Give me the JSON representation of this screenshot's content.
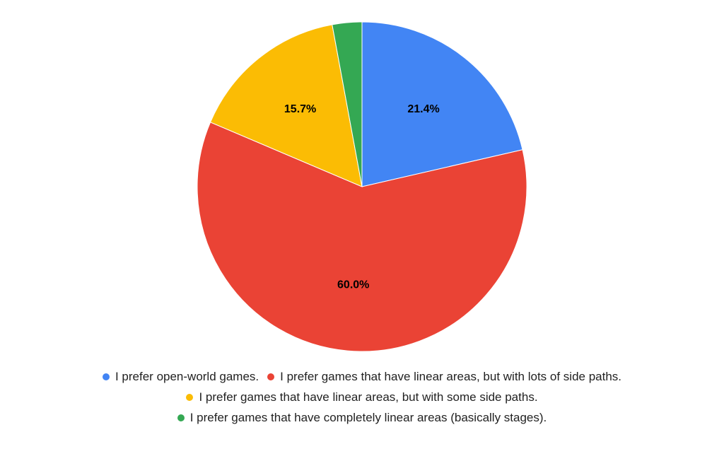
{
  "chart_data": {
    "type": "pie",
    "title": "",
    "start_angle_deg": 0,
    "direction": "clockwise",
    "slices": [
      {
        "label": "I prefer open-world games.",
        "value": 21.4,
        "value_label": "21.4%",
        "color": "#4285F4"
      },
      {
        "label": "I prefer games that have linear areas, but with lots of side paths.",
        "value": 60.0,
        "value_label": "60.0%",
        "color": "#EA4335"
      },
      {
        "label": "I prefer games that have linear areas, but with some side paths.",
        "value": 15.7,
        "value_label": "15.7%",
        "color": "#FBBC04"
      },
      {
        "label": "I prefer games that have completely linear areas (basically stages).",
        "value": 2.9,
        "value_label": "",
        "color": "#34A853"
      }
    ],
    "legend_position": "bottom"
  }
}
